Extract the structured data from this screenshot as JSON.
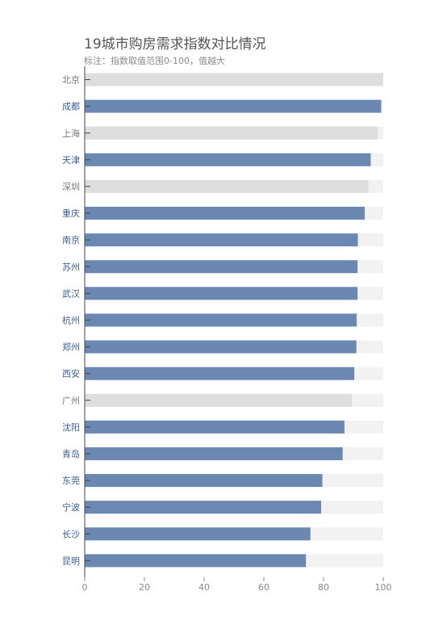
{
  "chart_data": {
    "type": "bar",
    "orientation": "horizontal",
    "title": "19城市购房需求指数对比情况",
    "subtitle": "标注：指数取值范围0-100，值越大",
    "xlim": [
      0,
      100
    ],
    "x_ticks": [
      0,
      20,
      40,
      60,
      80,
      100
    ],
    "categories": [
      "北京",
      "成都",
      "上海",
      "天津",
      "深圳",
      "重庆",
      "南京",
      "苏州",
      "武汉",
      "杭州",
      "郑州",
      "西安",
      "广州",
      "沈阳",
      "青岛",
      "东莞",
      "宁波",
      "长沙",
      "昆明"
    ],
    "values": [
      100,
      99.3,
      98.2,
      95.8,
      95.0,
      93.8,
      91.5,
      91.4,
      91.4,
      91.1,
      91.0,
      90.3,
      89.5,
      87.0,
      86.4,
      79.6,
      79.2,
      75.6,
      74.1
    ],
    "highlighted": [
      false,
      true,
      false,
      true,
      false,
      true,
      true,
      true,
      true,
      true,
      true,
      true,
      false,
      true,
      true,
      true,
      true,
      true,
      true
    ],
    "grid": false,
    "legend": "none",
    "colors": {
      "highlight_bar": "#6b88b2",
      "muted_bar": "#dedede",
      "track": "#f2f2f2",
      "highlight_label": "#3c5f91",
      "muted_label": "#777777",
      "axis": "#444444",
      "tick_label": "#888888"
    }
  }
}
